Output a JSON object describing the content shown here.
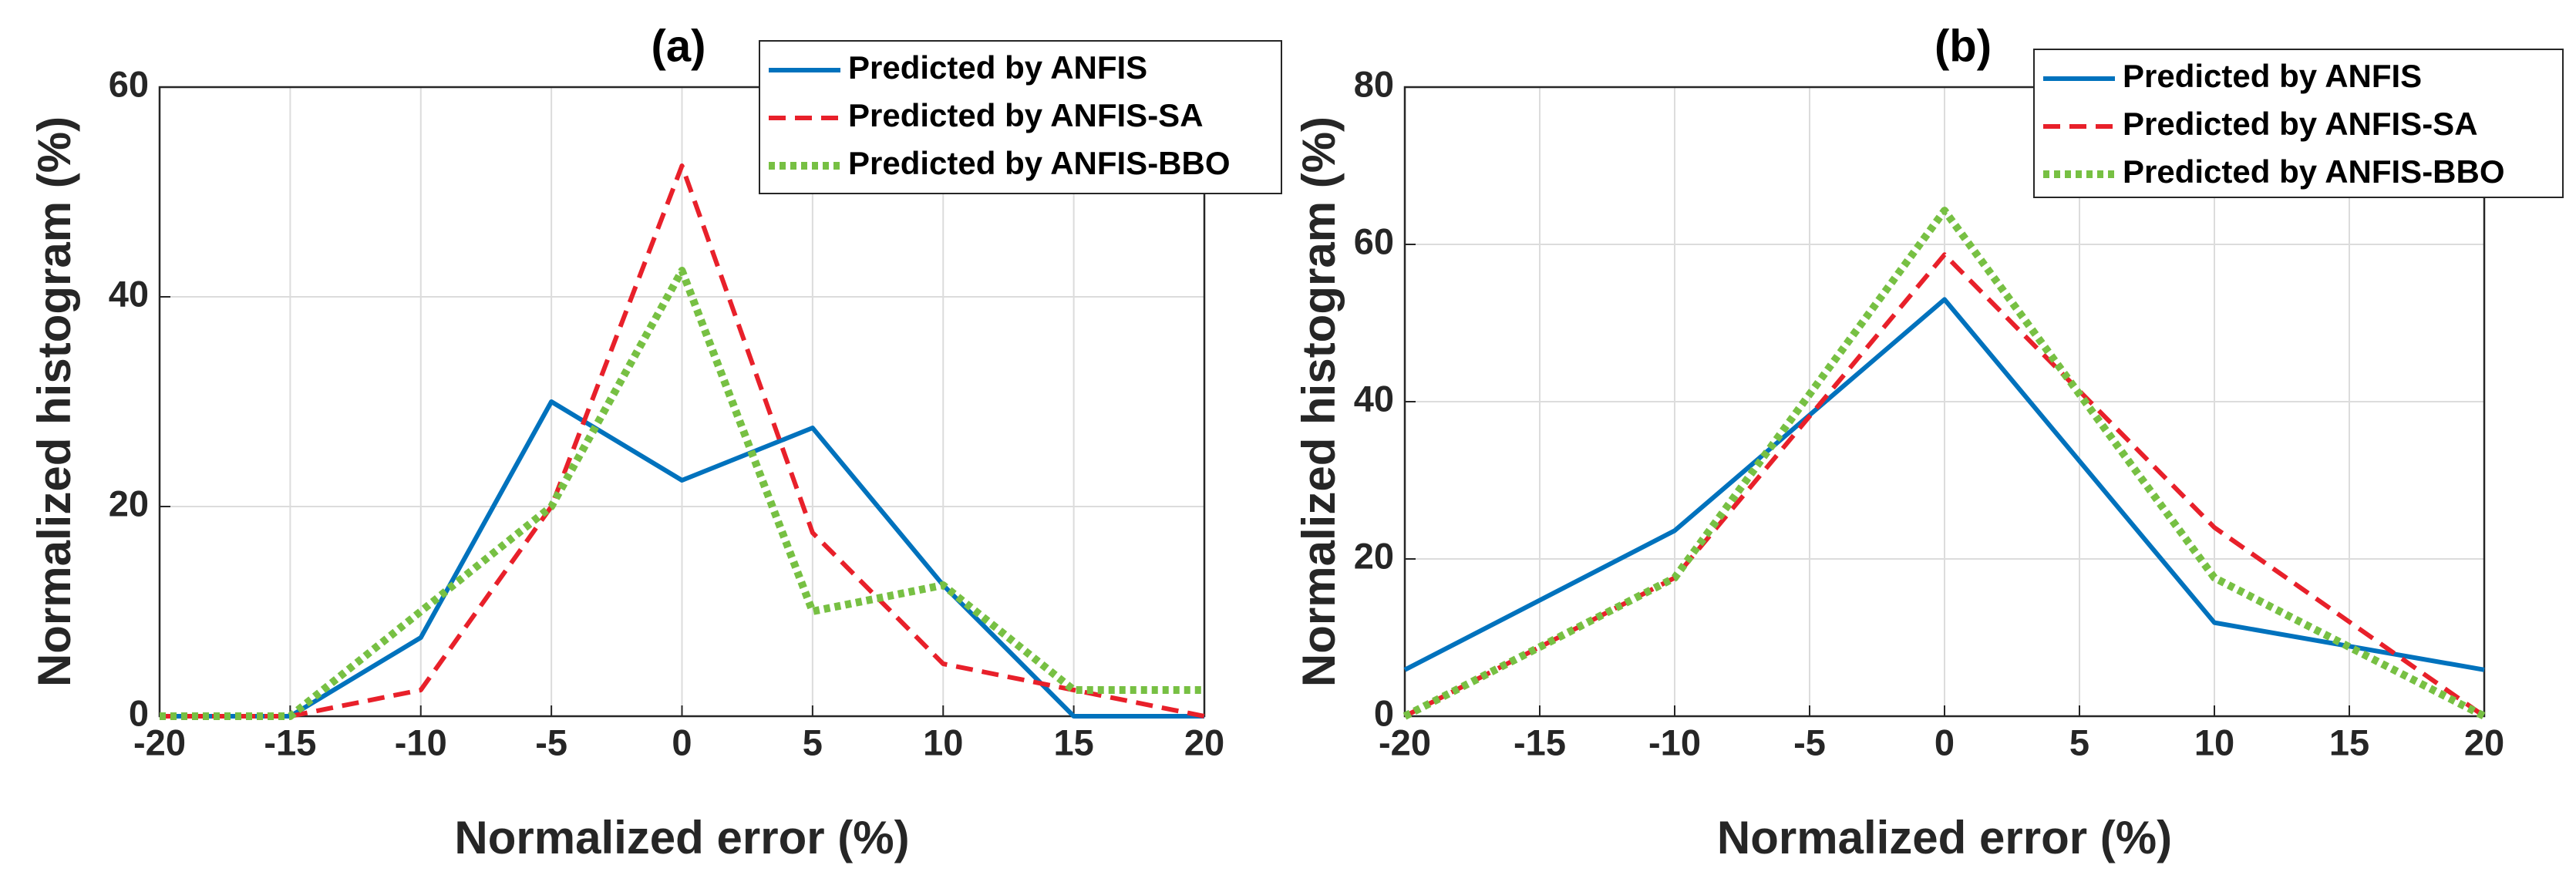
{
  "chart_data": [
    {
      "type": "line",
      "title": "(a)",
      "xlabel": "Normalized error (%)",
      "ylabel": "Normalized histogram (%)",
      "x": [
        -20,
        -15,
        -10,
        -5,
        0,
        5,
        10,
        15,
        20
      ],
      "series": [
        {
          "name": "Predicted by ANFIS",
          "color": "#0072bd",
          "style": "solid",
          "values": [
            0,
            0,
            7.5,
            30,
            22.5,
            27.5,
            12.5,
            0,
            0
          ]
        },
        {
          "name": "Predicted by ANFIS-SA",
          "color": "#e8202a",
          "style": "dashed",
          "values": [
            0,
            0,
            2.5,
            20,
            52.5,
            17.5,
            5,
            2.5,
            0
          ]
        },
        {
          "name": "Predicted by ANFIS-BBO",
          "color": "#77c043",
          "style": "dotted",
          "values": [
            0,
            0,
            10,
            20,
            42.5,
            10,
            12.5,
            2.5,
            2.5
          ]
        }
      ],
      "xlim": [
        -20,
        20
      ],
      "xticks": [
        -20,
        -15,
        -10,
        -5,
        0,
        5,
        10,
        15,
        20
      ],
      "ylim": [
        0,
        60
      ],
      "yticks": [
        0,
        20,
        40,
        60
      ],
      "grid": true,
      "legend": "upper right"
    },
    {
      "type": "line",
      "title": "(b)",
      "xlabel": "Normalized error (%)",
      "ylabel": "Normalized histogram (%)",
      "x": [
        -20,
        -10,
        0,
        10,
        20
      ],
      "series": [
        {
          "name": "Predicted by ANFIS",
          "color": "#0072bd",
          "style": "solid",
          "values": [
            5.9,
            23.6,
            53,
            11.9,
            5.9
          ]
        },
        {
          "name": "Predicted by ANFIS-SA",
          "color": "#e8202a",
          "style": "dashed",
          "values": [
            0,
            17.6,
            58.7,
            24,
            0
          ]
        },
        {
          "name": "Predicted by ANFIS-BBO",
          "color": "#77c043",
          "style": "dotted",
          "values": [
            0,
            17.6,
            64.3,
            17.6,
            0
          ]
        }
      ],
      "xlim": [
        -20,
        20
      ],
      "xticks": [
        -20,
        -15,
        -10,
        -5,
        0,
        5,
        10,
        15,
        20
      ],
      "ylim": [
        0,
        80
      ],
      "yticks": [
        0,
        20,
        40,
        60,
        80
      ],
      "grid": true,
      "legend": "upper right"
    }
  ]
}
